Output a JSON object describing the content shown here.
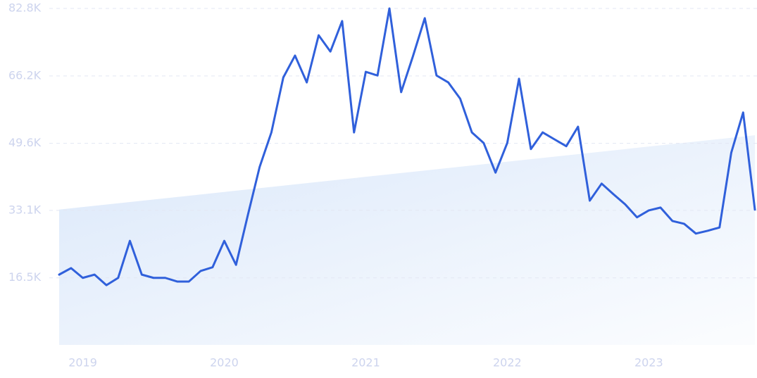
{
  "chart_data": {
    "type": "line",
    "x": [
      2018.833,
      2018.917,
      2019,
      2019.083,
      2019.167,
      2019.25,
      2019.333,
      2019.417,
      2019.5,
      2019.583,
      2019.667,
      2019.75,
      2019.833,
      2019.917,
      2020,
      2020.083,
      2020.167,
      2020.25,
      2020.333,
      2020.417,
      2020.5,
      2020.583,
      2020.667,
      2020.75,
      2020.833,
      2020.917,
      2021,
      2021.083,
      2021.167,
      2021.25,
      2021.333,
      2021.417,
      2021.5,
      2021.583,
      2021.667,
      2021.75,
      2021.833,
      2021.917,
      2022,
      2022.083,
      2022.167,
      2022.25,
      2022.333,
      2022.417,
      2022.5,
      2022.583,
      2022.667,
      2022.75,
      2022.833,
      2022.917,
      2023,
      2023.083,
      2023.167,
      2023.25,
      2023.333,
      2023.417,
      2023.5,
      2023.583,
      2023.667,
      2023.75
    ],
    "series": [
      {
        "color": "#3060db",
        "values": [
          17300,
          18900,
          16500,
          17300,
          14700,
          16500,
          25600,
          17300,
          16500,
          16500,
          15600,
          15600,
          18200,
          19100,
          25600,
          19700,
          32000,
          43800,
          52300,
          65800,
          71200,
          64600,
          76200,
          72200,
          79700,
          52300,
          67200,
          66300,
          82800,
          62200,
          71000,
          80400,
          66300,
          64600,
          60600,
          52300,
          49700,
          42400,
          49700,
          65500,
          48200,
          52300,
          50600,
          48900,
          53700,
          35500,
          39700,
          37100,
          34600,
          31400,
          33100,
          33800,
          30500,
          29800,
          27400,
          28100,
          28900,
          47300,
          57200,
          33300
        ]
      }
    ],
    "trend_values": [
      33300,
      51600
    ],
    "trend_color": "#dbe8fa",
    "xlim": [
      2018.833,
      2023.75
    ],
    "xticks": [
      {
        "value": 2019,
        "label": "2019"
      },
      {
        "value": 2020,
        "label": "2020"
      },
      {
        "value": 2021,
        "label": "2021"
      },
      {
        "value": 2022,
        "label": "2022"
      },
      {
        "value": 2023,
        "label": "2023"
      }
    ],
    "ylim": [
      0,
      82800
    ],
    "yticks": [
      {
        "value": 16500,
        "label": "16.5K"
      },
      {
        "value": 33100,
        "label": "33.1K"
      },
      {
        "value": 49600,
        "label": "49.6K"
      },
      {
        "value": 66200,
        "label": "66.2K"
      },
      {
        "value": 82800,
        "label": "82.8K"
      }
    ],
    "grid": true
  }
}
